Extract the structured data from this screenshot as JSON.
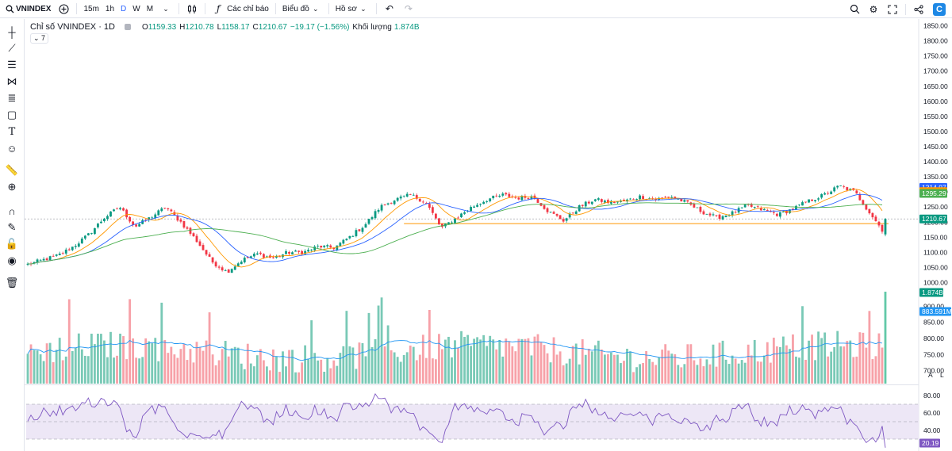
{
  "toolbar": {
    "symbol": "VNINDEX",
    "intervals": [
      "15m",
      "1h",
      "D",
      "W",
      "M"
    ],
    "active_interval": "D",
    "indicators_label": "Các chỉ báo",
    "chart_type_label": "Biểu đồ",
    "profile_label": "Hồ sơ",
    "logo_letter": "C"
  },
  "legend": {
    "title": "Chỉ số VNINDEX · 1D",
    "open_key": "O",
    "open": "1159.33",
    "high_key": "H",
    "high": "1210.78",
    "low_key": "L",
    "low": "1158.17",
    "close_key": "C",
    "close": "1210.67",
    "change": "−19.17 (−1.56%)",
    "volume_label": "Khối lượng",
    "volume": "1.874B",
    "indicator_count": "7"
  },
  "colors": {
    "up": "#089981",
    "down": "#f23645",
    "ma_short": "#ff9800",
    "ma_mid": "#2962ff",
    "ma_long": "#4caf50",
    "rsi": "#7e57c2",
    "rsi_band": "#ede7f6",
    "vol_ma": "#2196f3"
  },
  "chart_data": [
    {
      "type": "candlestick",
      "panel": "price",
      "title": "Chỉ số VNINDEX · 1D",
      "ylim": [
        975,
        1862
      ],
      "y_ticks": [
        1000,
        1050,
        1100,
        1150,
        1200,
        1250,
        1300,
        1350,
        1400,
        1450,
        1500,
        1550,
        1600,
        1650,
        1700,
        1750,
        1800,
        1850
      ],
      "series_anchors": [
        1060,
        1075,
        1090,
        1120,
        1160,
        1215,
        1250,
        1185,
        1215,
        1250,
        1200,
        1140,
        1070,
        1035,
        1075,
        1095,
        1080,
        1100,
        1100,
        1120,
        1115,
        1150,
        1190,
        1250,
        1275,
        1290,
        1265,
        1180,
        1215,
        1250,
        1275,
        1290,
        1280,
        1285,
        1235,
        1205,
        1250,
        1275,
        1265,
        1270,
        1285,
        1275,
        1285,
        1265,
        1235,
        1215,
        1230,
        1255,
        1240,
        1225,
        1245,
        1270,
        1290,
        1320,
        1300,
        1230,
        1160
      ],
      "price_tags": [
        {
          "label": "1314.97",
          "value": 1314.97,
          "color": "#2962ff"
        },
        {
          "label": "1301.21",
          "value": 1301.21,
          "color": "#ff9800"
        },
        {
          "label": "1295.29",
          "value": 1295.29,
          "color": "#4caf50"
        },
        {
          "label": "1210.67",
          "value": 1210.67,
          "color": "#089981"
        }
      ],
      "last_close": 1210.67,
      "moving_averages": [
        "short",
        "mid",
        "long"
      ]
    },
    {
      "type": "bar",
      "panel": "volume",
      "ylim": [
        660,
        940
      ],
      "y_ticks": [
        700,
        750,
        800,
        850,
        900
      ],
      "baseline_M": 745,
      "last_value_M": 1874,
      "tags": [
        {
          "label": "1.874B",
          "color": "#089981"
        },
        {
          "label": "883.591M",
          "color": "#2196f3"
        }
      ],
      "scale_buttons": [
        "A",
        "L"
      ]
    },
    {
      "type": "line",
      "panel": "rsi",
      "ylim": [
        20,
        90
      ],
      "y_ticks": [
        40,
        60,
        80
      ],
      "y_tick_labels": [
        "40.00",
        "60.00",
        "80.00"
      ],
      "band": [
        30,
        70
      ],
      "midline": 50,
      "last_value": 20.19,
      "tag": {
        "label": "20.19",
        "color": "#7e57c2"
      }
    }
  ]
}
